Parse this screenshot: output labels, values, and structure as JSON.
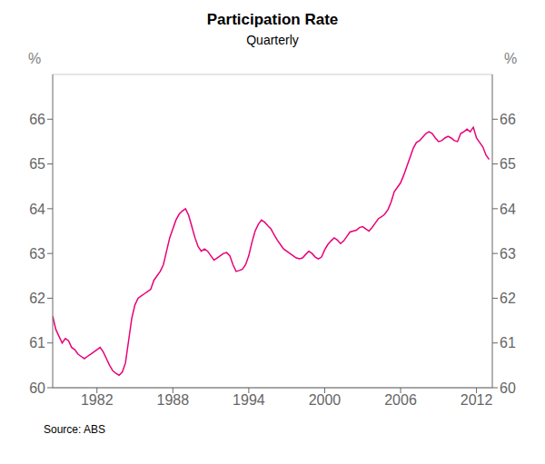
{
  "chart_data": {
    "type": "line",
    "title": "Participation Rate",
    "subtitle": "Quarterly",
    "ylabel": "%",
    "y2label": "%",
    "source": "Source: ABS",
    "color": "#E8007A",
    "grid": true,
    "xlim": [
      1978.5,
      2013.25
    ],
    "xticks": [
      1982,
      1988,
      1994,
      2000,
      2006,
      2012
    ],
    "ylim": [
      60,
      67
    ],
    "yticks": [
      60,
      61,
      62,
      63,
      64,
      65,
      66
    ],
    "y2lim": [
      60,
      67
    ],
    "y2ticks": [
      60,
      61,
      62,
      63,
      64,
      65,
      66
    ],
    "x": [
      1978.5,
      1978.75,
      1979.0,
      1979.25,
      1979.5,
      1979.75,
      1980.0,
      1980.25,
      1980.5,
      1980.75,
      1981.0,
      1981.25,
      1981.5,
      1981.75,
      1982.0,
      1982.25,
      1982.5,
      1982.75,
      1983.0,
      1983.25,
      1983.5,
      1983.75,
      1984.0,
      1984.25,
      1984.5,
      1984.75,
      1985.0,
      1985.25,
      1985.5,
      1985.75,
      1986.0,
      1986.25,
      1986.5,
      1986.75,
      1987.0,
      1987.25,
      1987.5,
      1987.75,
      1988.0,
      1988.25,
      1988.5,
      1988.75,
      1989.0,
      1989.25,
      1989.5,
      1989.75,
      1990.0,
      1990.25,
      1990.5,
      1990.75,
      1991.0,
      1991.25,
      1991.5,
      1991.75,
      1992.0,
      1992.25,
      1992.5,
      1992.75,
      1993.0,
      1993.25,
      1993.5,
      1993.75,
      1994.0,
      1994.25,
      1994.5,
      1994.75,
      1995.0,
      1995.25,
      1995.5,
      1995.75,
      1996.0,
      1996.25,
      1996.5,
      1996.75,
      1997.0,
      1997.25,
      1997.5,
      1997.75,
      1998.0,
      1998.25,
      1998.5,
      1998.75,
      1999.0,
      1999.25,
      1999.5,
      1999.75,
      2000.0,
      2000.25,
      2000.5,
      2000.75,
      2001.0,
      2001.25,
      2001.5,
      2001.75,
      2002.0,
      2002.25,
      2002.5,
      2002.75,
      2003.0,
      2003.25,
      2003.5,
      2003.75,
      2004.0,
      2004.25,
      2004.5,
      2004.75,
      2005.0,
      2005.25,
      2005.5,
      2005.75,
      2006.0,
      2006.25,
      2006.5,
      2006.75,
      2007.0,
      2007.25,
      2007.5,
      2007.75,
      2008.0,
      2008.25,
      2008.5,
      2008.75,
      2009.0,
      2009.25,
      2009.5,
      2009.75,
      2010.0,
      2010.25,
      2010.5,
      2010.75,
      2011.0,
      2011.25,
      2011.5,
      2011.75,
      2012.0,
      2012.25,
      2012.5,
      2012.75,
      2013.0
    ],
    "values": [
      61.6,
      61.3,
      61.15,
      61.0,
      61.1,
      61.05,
      60.9,
      60.85,
      60.75,
      60.7,
      60.65,
      60.7,
      60.75,
      60.8,
      60.85,
      60.9,
      60.8,
      60.65,
      60.5,
      60.38,
      60.32,
      60.28,
      60.35,
      60.55,
      61.05,
      61.55,
      61.85,
      62.0,
      62.05,
      62.1,
      62.15,
      62.2,
      62.4,
      62.5,
      62.6,
      62.75,
      63.05,
      63.35,
      63.55,
      63.75,
      63.88,
      63.95,
      64.0,
      63.85,
      63.6,
      63.35,
      63.15,
      63.05,
      63.1,
      63.05,
      62.95,
      62.85,
      62.9,
      62.95,
      63.0,
      63.02,
      62.95,
      62.75,
      62.6,
      62.62,
      62.65,
      62.75,
      62.95,
      63.25,
      63.5,
      63.65,
      63.75,
      63.7,
      63.62,
      63.55,
      63.42,
      63.3,
      63.2,
      63.1,
      63.05,
      63.0,
      62.95,
      62.9,
      62.88,
      62.9,
      62.98,
      63.05,
      63.0,
      62.92,
      62.88,
      62.92,
      63.08,
      63.2,
      63.28,
      63.35,
      63.3,
      63.22,
      63.28,
      63.38,
      63.48,
      63.5,
      63.52,
      63.58,
      63.6,
      63.55,
      63.5,
      63.58,
      63.68,
      63.78,
      63.82,
      63.88,
      63.98,
      64.15,
      64.38,
      64.48,
      64.58,
      64.75,
      64.95,
      65.15,
      65.35,
      65.48,
      65.52,
      65.6,
      65.68,
      65.72,
      65.68,
      65.58,
      65.5,
      65.52,
      65.58,
      65.62,
      65.58,
      65.52,
      65.5,
      65.68,
      65.72,
      65.78,
      65.72,
      65.82,
      65.58,
      65.48,
      65.38,
      65.2,
      65.1
    ]
  }
}
